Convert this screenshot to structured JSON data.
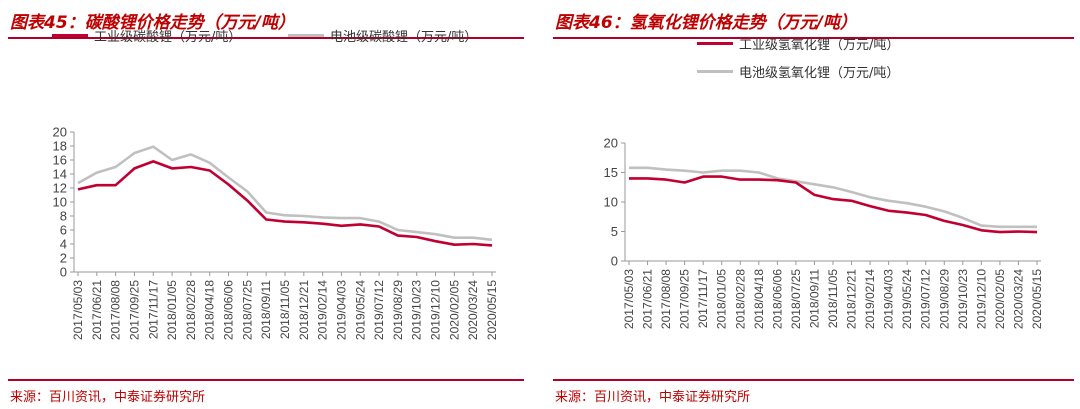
{
  "panels": [
    {
      "title": "图表45：碳酸锂价格走势（万元/吨）",
      "source": "来源：百川资讯，中泰证券研究所",
      "chart_data": {
        "type": "line",
        "x": [
          "2017/05/03",
          "2017/06/21",
          "2017/08/08",
          "2017/09/25",
          "2017/11/17",
          "2018/01/05",
          "2018/02/28",
          "2018/04/18",
          "2018/06/06",
          "2018/07/25",
          "2018/09/11",
          "2018/11/05",
          "2018/12/21",
          "2019/02/14",
          "2019/04/03",
          "2019/05/24",
          "2019/07/12",
          "2019/08/29",
          "2019/10/23",
          "2019/12/10",
          "2020/02/05",
          "2020/03/24",
          "2020/05/15"
        ],
        "series": [
          {
            "name": "工业级碳酸锂（万元/吨）",
            "color": "#c00030",
            "values": [
              11.8,
              12.4,
              12.4,
              14.8,
              15.8,
              14.8,
              15.0,
              14.5,
              12.5,
              10.2,
              7.5,
              7.2,
              7.1,
              6.9,
              6.6,
              6.8,
              6.5,
              5.2,
              5.0,
              4.4,
              3.9,
              4.0,
              3.8
            ]
          },
          {
            "name": "电池级碳酸锂（万元/吨）",
            "color": "#c0c0c0",
            "values": [
              12.7,
              14.2,
              15.0,
              17.0,
              17.9,
              16.0,
              16.8,
              15.6,
              13.5,
              11.5,
              8.5,
              8.1,
              8.0,
              7.8,
              7.7,
              7.7,
              7.2,
              6.0,
              5.7,
              5.4,
              4.9,
              4.9,
              4.6
            ]
          }
        ],
        "y_ticks": [
          "0",
          "2",
          "4",
          "6",
          "8",
          "10",
          "12",
          "14",
          "16",
          "18",
          "20"
        ],
        "ylim": [
          0,
          20
        ],
        "legend_position": "top"
      }
    },
    {
      "title": "图表46：氢氧化锂价格走势（万元/吨）",
      "source": "来源：百川资讯，中泰证券研究所",
      "chart_data": {
        "type": "line",
        "x": [
          "2017/05/03",
          "2017/06/21",
          "2017/08/08",
          "2017/09/25",
          "2017/11/17",
          "2018/01/05",
          "2018/02/28",
          "2018/04/18",
          "2018/06/06",
          "2018/07/25",
          "2018/09/11",
          "2018/11/05",
          "2018/12/21",
          "2019/02/14",
          "2019/04/03",
          "2019/05/24",
          "2019/07/12",
          "2019/08/29",
          "2019/10/23",
          "2019/12/10",
          "2020/02/05",
          "2020/03/24",
          "2020/05/15"
        ],
        "series": [
          {
            "name": "工业级氢氧化锂（万元/吨）",
            "color": "#c00030",
            "values": [
              14.0,
              14.0,
              13.8,
              13.3,
              14.3,
              14.3,
              13.8,
              13.8,
              13.7,
              13.3,
              11.2,
              10.5,
              10.2,
              9.3,
              8.5,
              8.2,
              7.8,
              6.8,
              6.1,
              5.2,
              4.9,
              5.0,
              4.9
            ]
          },
          {
            "name": "电池级氢氧化锂（万元/吨）",
            "color": "#c0c0c0",
            "values": [
              15.8,
              15.8,
              15.5,
              15.3,
              15.0,
              15.3,
              15.3,
              15.0,
              14.0,
              13.5,
              13.0,
              12.5,
              11.7,
              10.8,
              10.2,
              9.8,
              9.2,
              8.4,
              7.3,
              6.0,
              5.8,
              5.8,
              5.8
            ]
          }
        ],
        "y_ticks": [
          "0",
          "5",
          "10",
          "15",
          "20"
        ],
        "ylim": [
          0,
          20
        ],
        "legend_position": "top-center"
      }
    }
  ]
}
